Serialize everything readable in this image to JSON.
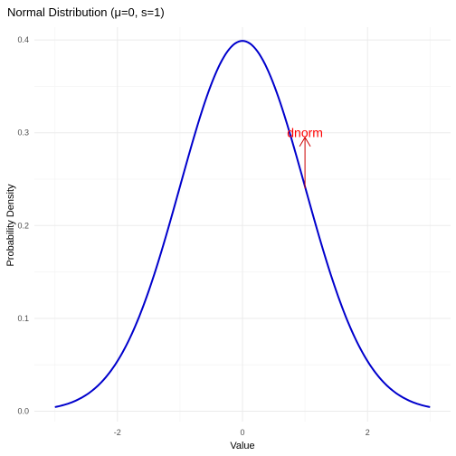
{
  "chart_data": {
    "type": "line",
    "title": "Normal Distribution (μ=0, s=1)",
    "xlabel": "Value",
    "ylabel": "Probability Density",
    "xlim": [
      -3,
      3
    ],
    "ylim": [
      0,
      0.4
    ],
    "x_ticks": [
      -2,
      0,
      2
    ],
    "x_tick_labels": [
      "-2",
      "0",
      "2"
    ],
    "y_ticks": [
      0,
      0.1,
      0.2,
      0.3,
      0.4
    ],
    "y_tick_labels": [
      "0.0",
      "0.1",
      "0.2",
      "0.3",
      "0.4"
    ],
    "grid": true,
    "series": [
      {
        "function": "dnorm",
        "mean": 0,
        "sd": 1,
        "x_from": -3,
        "x_to": 3,
        "color": "#0000cc"
      }
    ],
    "annotation": {
      "text": "dnorm",
      "x": 1,
      "y": 0.3,
      "arrow_from": [
        1,
        0.24
      ],
      "arrow_to": [
        1,
        0.295
      ],
      "color": "#ff0000",
      "arrow_color": "#cc0000"
    }
  }
}
